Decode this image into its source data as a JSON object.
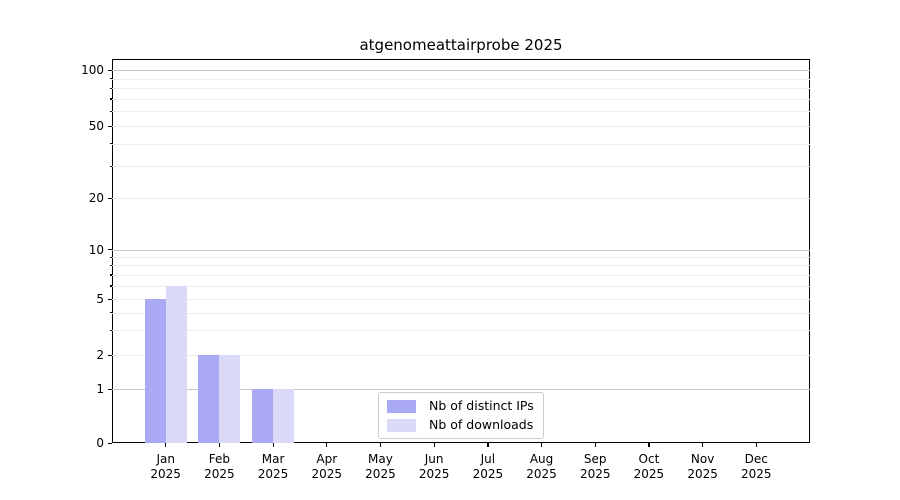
{
  "chart_data": {
    "type": "bar",
    "title": "atgenomeattairprobe 2025",
    "categories": [
      "Jan",
      "Feb",
      "Mar",
      "Apr",
      "May",
      "Jun",
      "Jul",
      "Aug",
      "Sep",
      "Oct",
      "Nov",
      "Dec"
    ],
    "x_year": "2025",
    "series": [
      {
        "name": "Nb of distinct IPs",
        "color": "#a9a9f4",
        "values": [
          5,
          2,
          1,
          0,
          0,
          0,
          0,
          0,
          0,
          0,
          0,
          0
        ]
      },
      {
        "name": "Nb of downloads",
        "color": "#dadaf8",
        "values": [
          6,
          2,
          1,
          0,
          0,
          0,
          0,
          0,
          0,
          0,
          0,
          0
        ]
      }
    ],
    "xlabel": "",
    "ylabel": "",
    "y_scale": "log-like",
    "y_ticks": [
      0,
      1,
      2,
      5,
      10,
      20,
      50,
      100
    ],
    "y_minor_gridlines": [
      3,
      4,
      6,
      7,
      8,
      9,
      30,
      40,
      60,
      70,
      80,
      90
    ],
    "ylim": [
      0,
      115
    ],
    "grid": true,
    "legend_position": "bottom-center"
  },
  "colors": {
    "major_grid": "#c9c9c9",
    "minor_grid": "#ededed",
    "axis": "#000000",
    "legend_border": "#cccccc"
  }
}
